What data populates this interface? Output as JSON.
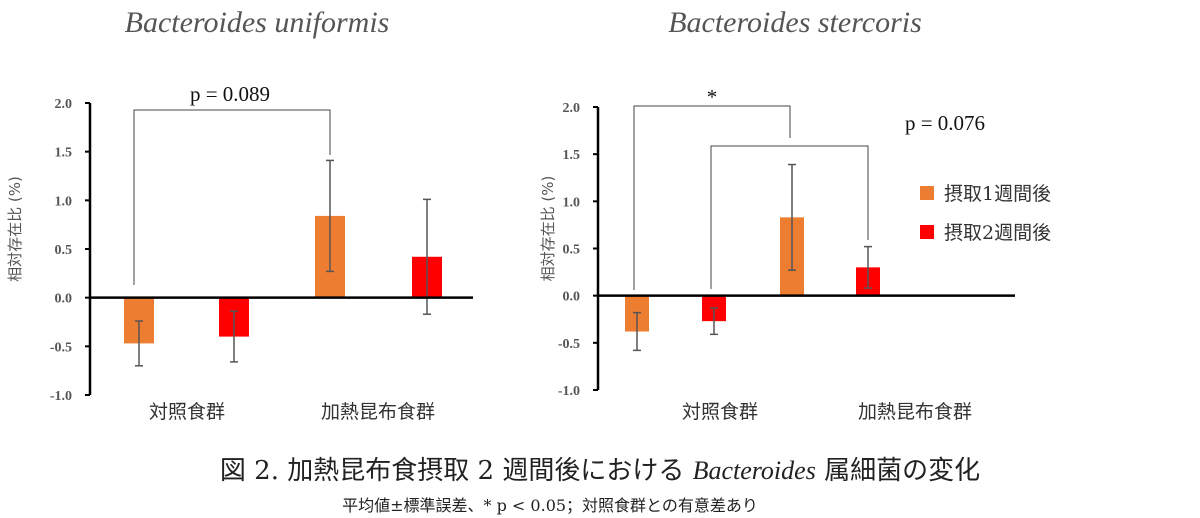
{
  "chart_data": [
    {
      "type": "bar",
      "title": "Bacteroides uniformis",
      "ylabel": "相対存在比 (%)",
      "ylim": [
        -1.0,
        2.0
      ],
      "yticks": [
        "2.0",
        "1.5",
        "1.0",
        "0.5",
        "0.0",
        "-0.5",
        "-1.0"
      ],
      "categories": [
        "対照食群",
        "加熱昆布食群"
      ],
      "series": [
        {
          "name": "摂取1週間後",
          "color": "#ED7D31",
          "values": [
            -0.47,
            0.84
          ],
          "errors": [
            0.23,
            0.57
          ]
        },
        {
          "name": "摂取2週間後",
          "color": "#FF0000",
          "values": [
            -0.4,
            0.42
          ],
          "errors": [
            0.26,
            0.59
          ]
        }
      ],
      "annotations": [
        {
          "text": "p = 0.089"
        }
      ]
    },
    {
      "type": "bar",
      "title": "Bacteroides stercoris",
      "ylabel": "相対存在比 (%)",
      "ylim": [
        -1.0,
        2.0
      ],
      "yticks": [
        "2.0",
        "1.5",
        "1.0",
        "0.5",
        "0.0",
        "-0.5",
        "-1.0"
      ],
      "categories": [
        "対照食群",
        "加熱昆布食群"
      ],
      "series": [
        {
          "name": "摂取1週間後",
          "color": "#ED7D31",
          "values": [
            -0.38,
            0.83
          ],
          "errors": [
            0.2,
            0.56
          ]
        },
        {
          "name": "摂取2週間後",
          "color": "#FF0000",
          "values": [
            -0.27,
            0.3
          ],
          "errors": [
            0.14,
            0.22
          ]
        }
      ],
      "annotations": [
        {
          "text": "*"
        },
        {
          "text": "p = 0.076"
        }
      ],
      "legend": [
        "摂取1週間後",
        "摂取2週間後"
      ]
    }
  ],
  "caption": {
    "prefix": "図 2. 加熱昆布食摂取 2 週間後における ",
    "italic": "Bacteroides",
    "suffix": " 属細菌の変化",
    "note": "平均値±標準誤差、* p < 0.05；対照食群との有意差あり"
  }
}
